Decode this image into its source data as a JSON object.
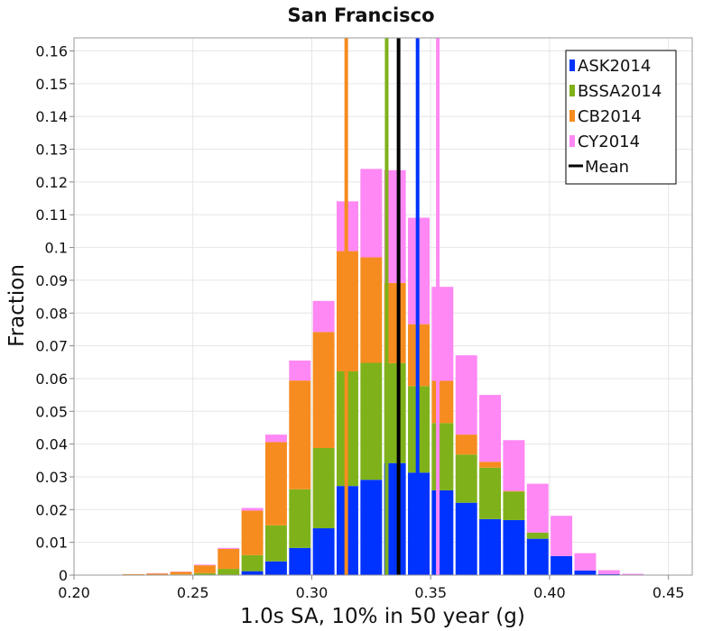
{
  "chart_data": {
    "type": "bar",
    "stacked": true,
    "title": "San Francisco",
    "xlabel": "1.0s SA, 10% in 50 year (g)",
    "ylabel": "Fraction",
    "xlim": [
      0.2,
      0.46
    ],
    "ylim": [
      0,
      0.164
    ],
    "xticks": [
      "0.20",
      "0.25",
      "0.30",
      "0.35",
      "0.40",
      "0.45"
    ],
    "yticks": [
      "0",
      "0.01",
      "0.02",
      "0.03",
      "0.04",
      "0.05",
      "0.06",
      "0.07",
      "0.08",
      "0.09",
      "0.1",
      "0.11",
      "0.12",
      "0.13",
      "0.14",
      "0.15",
      "0.16"
    ],
    "grid": true,
    "legend_position": "top-right",
    "bin_width": 0.01,
    "x": [
      0.215,
      0.225,
      0.235,
      0.245,
      0.255,
      0.265,
      0.275,
      0.285,
      0.295,
      0.305,
      0.315,
      0.325,
      0.335,
      0.345,
      0.355,
      0.365,
      0.375,
      0.385,
      0.395,
      0.405,
      0.415,
      0.425,
      0.435,
      0.445
    ],
    "series": [
      {
        "name": "ASK2014",
        "color": "#0033ff",
        "values": [
          0,
          0,
          0,
          0,
          0,
          0,
          0.0012,
          0.0042,
          0.0083,
          0.0143,
          0.0272,
          0.0291,
          0.0342,
          0.0313,
          0.0259,
          0.0221,
          0.0171,
          0.0168,
          0.0111,
          0.0058,
          0.0014,
          0.0003,
          0,
          0
        ]
      },
      {
        "name": "BSSA2014",
        "color": "#7fb21a",
        "values": [
          0,
          0,
          0,
          0.0002,
          0.0006,
          0.0019,
          0.0049,
          0.011,
          0.0179,
          0.0245,
          0.035,
          0.0357,
          0.0305,
          0.0264,
          0.0205,
          0.0147,
          0.0157,
          0.0087,
          0.0019,
          0,
          0,
          0,
          0,
          0
        ]
      },
      {
        "name": "CB2014",
        "color": "#f68c1f",
        "values": [
          0.0001,
          0.0003,
          0.0005,
          0.0008,
          0.0024,
          0.0061,
          0.0136,
          0.0254,
          0.0332,
          0.0354,
          0.0367,
          0.0322,
          0.0245,
          0.0189,
          0.0129,
          0.0061,
          0.0018,
          0.0002,
          0,
          0,
          0,
          0,
          0,
          0
        ]
      },
      {
        "name": "CY2014",
        "color": "#ff88f4",
        "values": [
          0,
          0,
          0.0001,
          0.0001,
          0.0002,
          0.0003,
          0.0008,
          0.0023,
          0.0061,
          0.0095,
          0.0152,
          0.027,
          0.0344,
          0.0325,
          0.0287,
          0.0242,
          0.0204,
          0.0155,
          0.0149,
          0.0123,
          0.0053,
          0.0012,
          0.0004,
          0.0001
        ]
      }
    ],
    "means": [
      {
        "name": "ASK2014",
        "color": "#0033ff",
        "x": 0.3445
      },
      {
        "name": "BSSA2014",
        "color": "#7fb21a",
        "x": 0.3315
      },
      {
        "name": "CB2014",
        "color": "#f68c1f",
        "x": 0.3145
      },
      {
        "name": "CY2014",
        "color": "#ff88f4",
        "x": 0.353
      },
      {
        "name": "Mean",
        "color": "#000000",
        "x": 0.3365
      }
    ],
    "legend": [
      {
        "label": "ASK2014",
        "color": "#0033ff",
        "kind": "bar"
      },
      {
        "label": "BSSA2014",
        "color": "#7fb21a",
        "kind": "bar"
      },
      {
        "label": "CB2014",
        "color": "#f68c1f",
        "kind": "bar"
      },
      {
        "label": "CY2014",
        "color": "#ff88f4",
        "kind": "bar"
      },
      {
        "label": "Mean",
        "color": "#000000",
        "kind": "line"
      }
    ]
  }
}
